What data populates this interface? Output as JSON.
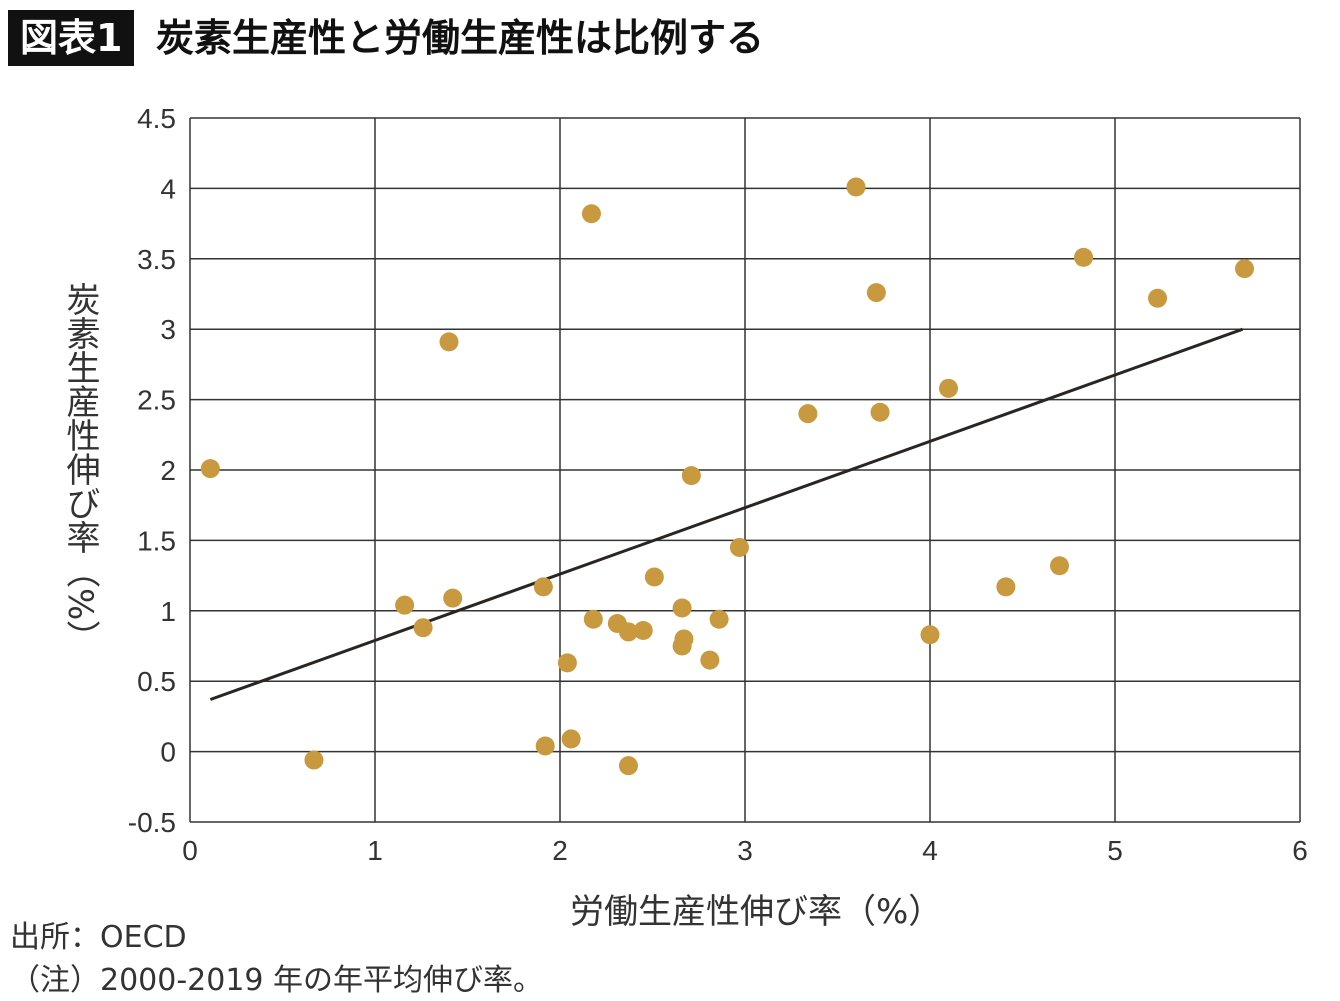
{
  "header": {
    "badge": "図表1",
    "title": "炭素生産性と労働生産性は比例する"
  },
  "footer": {
    "source": "出所：OECD",
    "note": "（注）2000-2019 年の年平均伸び率。"
  },
  "chart_data": {
    "type": "scatter",
    "title": "炭素生産性と労働生産性は比例する",
    "xlabel": "労働生産性伸び率（%）",
    "ylabel": "炭素生産性伸び率（%）",
    "xlim": [
      0,
      6
    ],
    "ylim": [
      -0.5,
      4.5
    ],
    "xticks": [
      "0",
      "1",
      "2",
      "3",
      "4",
      "5",
      "6"
    ],
    "yticks": [
      "-0.5",
      "0",
      "0.5",
      "1",
      "1.5",
      "2",
      "2.5",
      "3",
      "3.5",
      "4",
      "4.5"
    ],
    "grid": true,
    "colors": {
      "points": "#c9993f",
      "trendline": "#2a2522",
      "grid": "#333333"
    },
    "points": [
      [
        0.11,
        2.01
      ],
      [
        0.67,
        -0.06
      ],
      [
        1.16,
        1.04
      ],
      [
        1.26,
        0.88
      ],
      [
        1.4,
        2.91
      ],
      [
        1.42,
        1.09
      ],
      [
        1.91,
        1.17
      ],
      [
        1.92,
        0.04
      ],
      [
        2.04,
        0.63
      ],
      [
        2.06,
        0.09
      ],
      [
        2.17,
        3.82
      ],
      [
        2.18,
        0.94
      ],
      [
        2.31,
        0.91
      ],
      [
        2.37,
        0.85
      ],
      [
        2.37,
        -0.1
      ],
      [
        2.45,
        0.86
      ],
      [
        2.51,
        1.24
      ],
      [
        2.66,
        1.02
      ],
      [
        2.67,
        0.8
      ],
      [
        2.66,
        0.75
      ],
      [
        2.71,
        1.96
      ],
      [
        2.81,
        0.65
      ],
      [
        2.86,
        0.94
      ],
      [
        2.97,
        1.45
      ],
      [
        3.34,
        2.4
      ],
      [
        3.6,
        4.01
      ],
      [
        3.71,
        3.26
      ],
      [
        3.73,
        2.41
      ],
      [
        4.0,
        0.83
      ],
      [
        4.1,
        2.58
      ],
      [
        4.41,
        1.17
      ],
      [
        4.7,
        1.32
      ],
      [
        4.83,
        3.51
      ],
      [
        5.23,
        3.22
      ],
      [
        5.7,
        3.43
      ]
    ],
    "trendline": [
      [
        0.11,
        0.37
      ],
      [
        5.69,
        3.0
      ]
    ]
  }
}
